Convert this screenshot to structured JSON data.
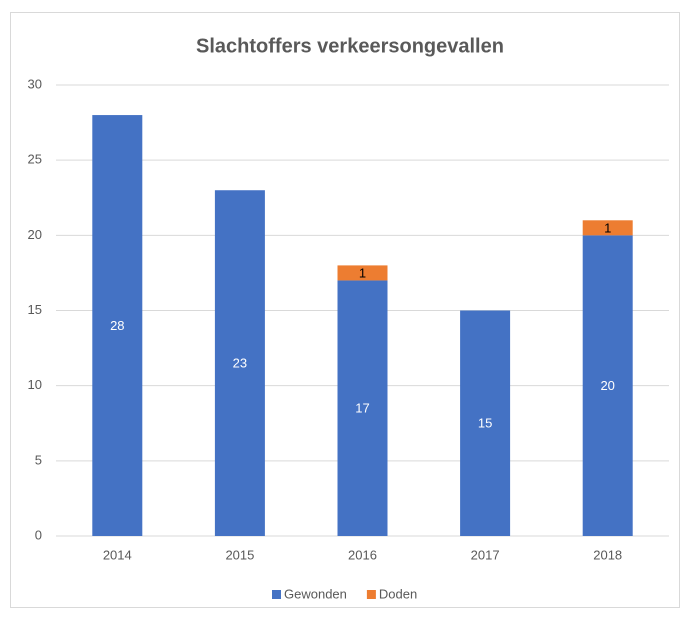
{
  "chart_data": {
    "type": "stacked_bar",
    "title": "Slachtoffers verkeersongevallen",
    "categories": [
      "2014",
      "2015",
      "2016",
      "2017",
      "2018"
    ],
    "series": [
      {
        "name": "Gewonden",
        "color": "#4472c4",
        "values": [
          28,
          23,
          17,
          15,
          20
        ]
      },
      {
        "name": "Doden",
        "color": "#ed7d31",
        "values": [
          null,
          null,
          1,
          null,
          1
        ]
      }
    ],
    "ylim": [
      0,
      30
    ],
    "yticks": [
      0,
      5,
      10,
      15,
      20,
      25,
      30
    ],
    "grid": true,
    "legend": "bottom"
  }
}
